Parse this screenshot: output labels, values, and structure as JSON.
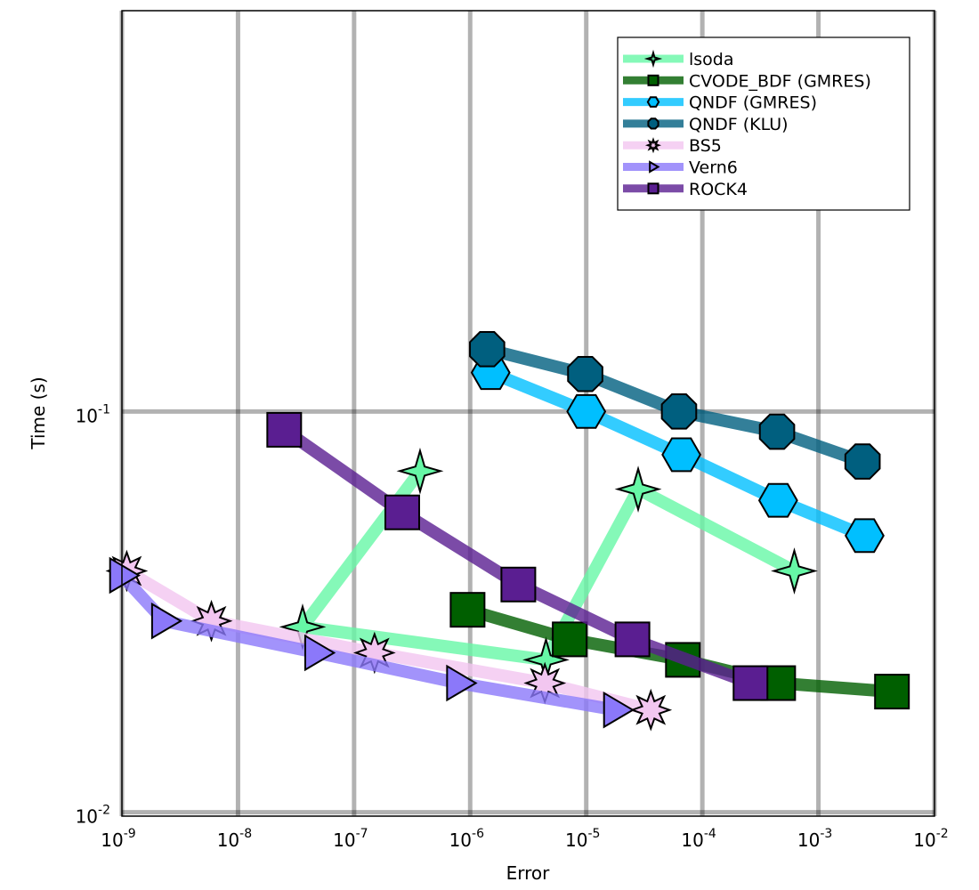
{
  "chart_data": {
    "type": "line",
    "xlabel": "Error",
    "ylabel": "Time (s)",
    "xscale": "log",
    "yscale": "log",
    "xlim": [
      1e-09,
      0.01
    ],
    "ylim": [
      0.00978,
      1.0
    ],
    "grid": true,
    "legend_position": "top-right",
    "x_ticks": [
      {
        "base": "10",
        "exp": "-9"
      },
      {
        "base": "10",
        "exp": "-8"
      },
      {
        "base": "10",
        "exp": "-7"
      },
      {
        "base": "10",
        "exp": "-6"
      },
      {
        "base": "10",
        "exp": "-5"
      },
      {
        "base": "10",
        "exp": "-4"
      },
      {
        "base": "10",
        "exp": "-3"
      },
      {
        "base": "10",
        "exp": "-2"
      }
    ],
    "y_ticks": [
      {
        "base": "10",
        "exp": "-2"
      },
      {
        "base": "10",
        "exp": "-1"
      }
    ],
    "series": [
      {
        "name": "lsoda",
        "color": "#66F7A6",
        "marker": "star4",
        "x": [
          3.7e-07,
          3.6e-08,
          4.5e-06,
          2.8e-05,
          0.00062
        ],
        "y": [
          0.071,
          0.029,
          0.024,
          0.064,
          0.04
        ]
      },
      {
        "name": "CVODE_BDF (GMRES)",
        "color": "#005F00",
        "marker": "square",
        "x": [
          9.5e-07,
          7.2e-06,
          6.8e-05,
          0.00045,
          0.0043
        ],
        "y": [
          0.032,
          0.027,
          0.024,
          0.021,
          0.02
        ]
      },
      {
        "name": "QNDF (GMRES)",
        "color": "#00BFFF",
        "marker": "hexagon",
        "x": [
          1.5e-06,
          1e-05,
          6.6e-05,
          0.00045,
          0.0025
        ],
        "y": [
          0.125,
          0.1,
          0.078,
          0.06,
          0.049
        ]
      },
      {
        "name": "QNDF (KLU)",
        "color": "#005F7F",
        "marker": "octagon",
        "x": [
          1.4e-06,
          9.8e-06,
          6.3e-05,
          0.00044,
          0.0024
        ],
        "y": [
          0.143,
          0.124,
          0.1,
          0.089,
          0.075
        ]
      },
      {
        "name": "BS5",
        "color": "#F2C6F0",
        "marker": "star8",
        "x": [
          1.1e-09,
          5.9e-09,
          1.5e-07,
          4.4e-06,
          3.6e-05
        ],
        "y": [
          0.04,
          0.03,
          0.025,
          0.021,
          0.018
        ]
      },
      {
        "name": "Vern6",
        "color": "#8B78FA",
        "marker": "triangle-right",
        "x": [
          1e-09,
          2.3e-09,
          4.8e-08,
          8e-07,
          1.8e-05
        ],
        "y": [
          0.039,
          0.03,
          0.025,
          0.021,
          0.018
        ]
      },
      {
        "name": "ROCK4",
        "color": "#5A1E91",
        "marker": "square",
        "x": [
          2.5e-08,
          2.6e-07,
          2.6e-06,
          2.5e-05,
          0.00026
        ],
        "y": [
          0.09,
          0.056,
          0.037,
          0.027,
          0.021
        ]
      }
    ]
  }
}
